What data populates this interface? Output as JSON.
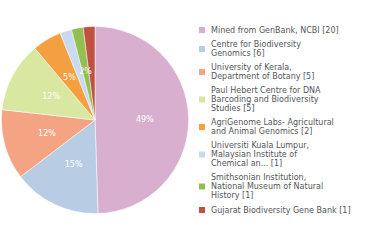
{
  "chart_data": {
    "type": "pie",
    "categories": [
      "Mined from GenBank, NCBI [20]",
      "Centre for Biodiversity\nGenomics [6]",
      "University of Kerala,\nDepartment of Botany [5]",
      "Paul Hebert Centre for DNA\nBarcoding and Biodiversity\nStudies [5]",
      "AgriGenome Labs- Agricultural\nand Animal Genomics [2]",
      "Universiti Kuala Lumpur,\nMalaysian Institute of\nChemical an... [1]",
      "Smithsonian Institution,\nNational Museum of Natural\nHistory [1]",
      "Gujarat Biodiversity Gene Bank [1]"
    ],
    "values": [
      49,
      15,
      12,
      12,
      5,
      2,
      2,
      2
    ],
    "value_labels": [
      "49%",
      "15%",
      "12%",
      "12%",
      "5%",
      "2%",
      "2%",
      "2%"
    ],
    "colors": [
      "#d9afd0",
      "#b8cce4",
      "#f4a483",
      "#d9e8a0",
      "#f4a040",
      "#c9d9f0",
      "#92c050",
      "#c05040"
    ],
    "data_labels": true,
    "legend": "right"
  }
}
